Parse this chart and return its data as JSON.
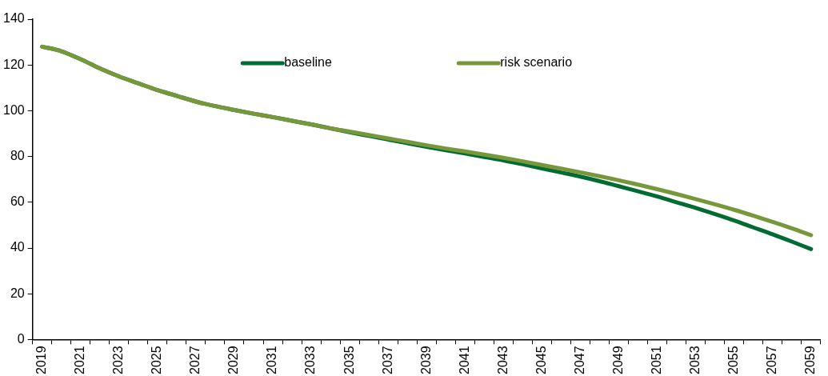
{
  "chart_data": {
    "type": "line",
    "categories": [
      "2019",
      null,
      "2021",
      null,
      "2023",
      null,
      "2025",
      null,
      "2027",
      null,
      "2029",
      null,
      "2031",
      null,
      "2033",
      null,
      "2035",
      null,
      "2037",
      null,
      "2039",
      null,
      "2041",
      null,
      "2043",
      null,
      "2045",
      null,
      "2047",
      null,
      "2049",
      null,
      "2051",
      null,
      "2053",
      null,
      "2055",
      null,
      "2057",
      null,
      "2059"
    ],
    "series": [
      {
        "name": "baseline",
        "color": "#006b33",
        "values": [
          128,
          126,
          122.5,
          118.5,
          115,
          112,
          109,
          106.5,
          104,
          102,
          100.3,
          98.7,
          97.2,
          95.6,
          94,
          92.3,
          90.6,
          89,
          87.4,
          85.8,
          84.2,
          82.7,
          81.3,
          79.8,
          78.3,
          76.6,
          74.8,
          73,
          71.2,
          69.2,
          67,
          64.8,
          62.5,
          60,
          57.5,
          54.8,
          52,
          49,
          46,
          42.8,
          39.5
        ]
      },
      {
        "name": "risk scenario",
        "color": "#77983a",
        "values": [
          128,
          126,
          122.5,
          118.5,
          115,
          112,
          109,
          106.5,
          104,
          102,
          100.3,
          98.7,
          97.2,
          95.6,
          94,
          92.3,
          90.9,
          89.4,
          87.9,
          86.4,
          84.9,
          83.5,
          82.2,
          80.8,
          79.4,
          77.9,
          76.3,
          74.7,
          73.1,
          71.4,
          69.6,
          67.7,
          65.7,
          63.6,
          61.4,
          59.1,
          56.7,
          54.1,
          51.4,
          48.6,
          45.6
        ]
      }
    ],
    "ylim": [
      0,
      140
    ],
    "yticks": [
      0,
      20,
      40,
      60,
      80,
      100,
      120,
      140
    ],
    "grid": false,
    "legend": "top",
    "marker": "none",
    "line_style": "solid"
  }
}
